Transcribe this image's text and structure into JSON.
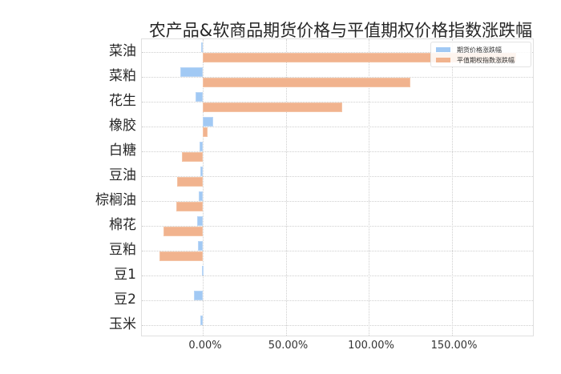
{
  "chart_data": {
    "type": "bar",
    "orientation": "horizontal",
    "title": "农产品&软商品期货价格与平值期权价格指数涨跌幅",
    "xlabel": "",
    "ylabel": "",
    "categories": [
      "菜油",
      "菜粕",
      "花生",
      "橡胶",
      "白糖",
      "豆油",
      "棕榈油",
      "棉花",
      "豆粕",
      "豆1",
      "豆2",
      "玉米"
    ],
    "series": [
      {
        "name": "期货价格涨跌幅",
        "color": "#a1c9f4",
        "values": [
          -1.0,
          -13.5,
          -4.5,
          6.5,
          -2.0,
          -1.5,
          -2.5,
          -3.5,
          -3.0,
          -0.7,
          -5.5,
          -1.5
        ]
      },
      {
        "name": "平值期权指数涨跌幅",
        "color": "#f1b38e",
        "values": [
          189.0,
          125.0,
          84.0,
          3.0,
          -12.5,
          -15.5,
          -16.0,
          -23.5,
          -26.0,
          0.0,
          0.0,
          0.0
        ]
      }
    ],
    "xlim": [
      -37,
      200
    ],
    "xticks": [
      0,
      50,
      100,
      150
    ],
    "xtick_labels": [
      "0.00%",
      "50.00%",
      "100.00%",
      "150.00%"
    ],
    "grid": true,
    "legend_position": "upper right",
    "unit": "%"
  }
}
